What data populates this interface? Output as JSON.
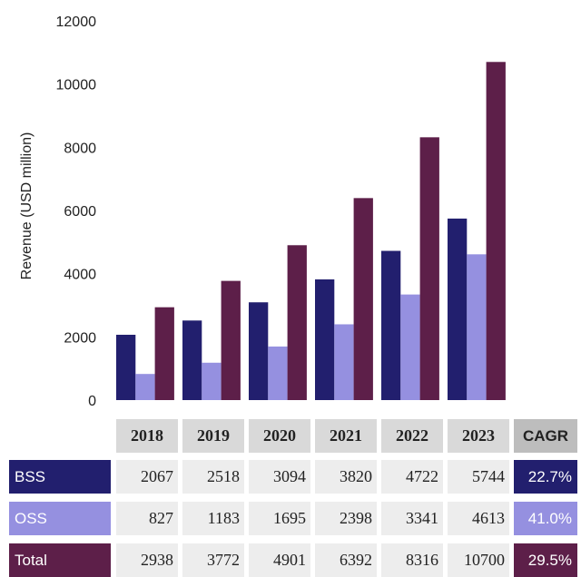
{
  "chart_data": {
    "type": "bar",
    "categories": [
      "2018",
      "2019",
      "2020",
      "2021",
      "2022",
      "2023"
    ],
    "series": [
      {
        "name": "BSS",
        "color": "#221f6e",
        "values": [
          2067,
          2518,
          3094,
          3820,
          4722,
          5744
        ]
      },
      {
        "name": "OSS",
        "color": "#9590e0",
        "values": [
          827,
          1183,
          1695,
          2398,
          3341,
          4613
        ]
      },
      {
        "name": "Total",
        "color": "#5d1f49",
        "values": [
          2938,
          3772,
          4901,
          6392,
          8316,
          10700
        ]
      }
    ],
    "ylabel": "Revenue (USD million)",
    "ylim": [
      0,
      12000
    ],
    "yticks": [
      "0",
      "2000",
      "4000",
      "6000",
      "8000",
      "10000",
      "12000"
    ],
    "grid": false
  },
  "table": {
    "years": [
      "2018",
      "2019",
      "2020",
      "2021",
      "2022",
      "2023"
    ],
    "cagr_header": "CAGR",
    "rows": [
      {
        "label": "BSS",
        "values": [
          "2067",
          "2518",
          "3094",
          "3820",
          "4722",
          "5744"
        ],
        "cagr": "22.7%",
        "color": "#221f6e"
      },
      {
        "label": "OSS",
        "values": [
          "827",
          "1183",
          "1695",
          "2398",
          "3341",
          "4613"
        ],
        "cagr": "41.0%",
        "color": "#9590e0"
      },
      {
        "label": "Total",
        "values": [
          "2938",
          "3772",
          "4901",
          "6392",
          "8316",
          "10700"
        ],
        "cagr": "29.5%",
        "color": "#5d1f49"
      }
    ]
  }
}
